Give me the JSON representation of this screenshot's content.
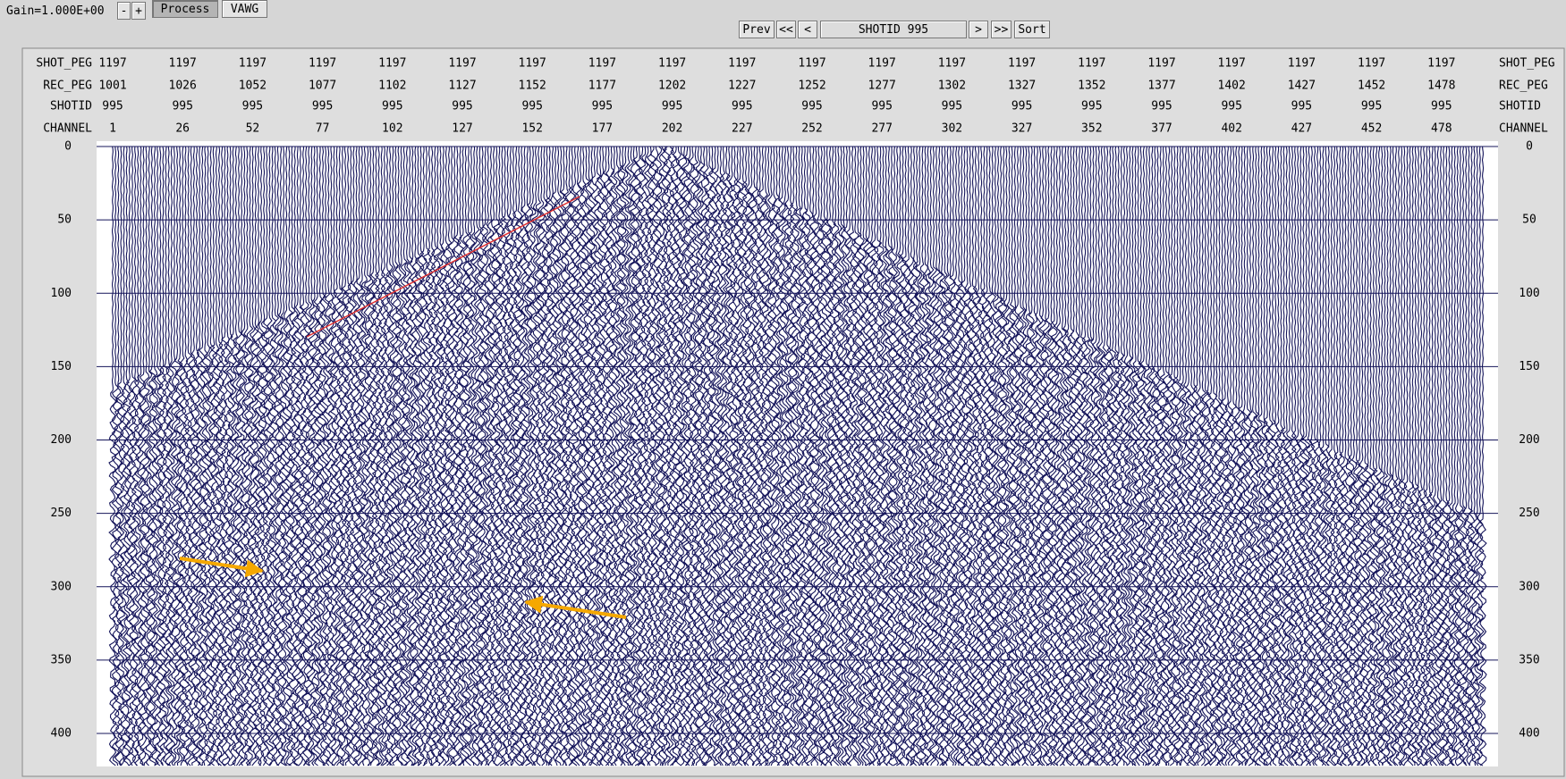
{
  "toolbar": {
    "gain": "Gain=1.000E+00",
    "minus": "-",
    "plus": "+",
    "process": "Process",
    "vawg": "VAWG"
  },
  "navigation": {
    "prev": "Prev",
    "first": "<<",
    "back": "<",
    "shot": "SHOTID 995",
    "next": ">",
    "last": ">>",
    "sort": "Sort"
  },
  "headers": [
    {
      "label": "SHOT_PEG",
      "values": [
        "1197",
        "1197",
        "1197",
        "1197",
        "1197",
        "1197",
        "1197",
        "1197",
        "1197",
        "1197",
        "1197",
        "1197",
        "1197",
        "1197",
        "1197",
        "1197",
        "1197",
        "1197",
        "1197",
        "1197"
      ]
    },
    {
      "label": "REC_PEG",
      "values": [
        "1001",
        "1026",
        "1052",
        "1077",
        "1102",
        "1127",
        "1152",
        "1177",
        "1202",
        "1227",
        "1252",
        "1277",
        "1302",
        "1327",
        "1352",
        "1377",
        "1402",
        "1427",
        "1452",
        "1478"
      ]
    },
    {
      "label": "SHOTID",
      "values": [
        "995",
        "995",
        "995",
        "995",
        "995",
        "995",
        "995",
        "995",
        "995",
        "995",
        "995",
        "995",
        "995",
        "995",
        "995",
        "995",
        "995",
        "995",
        "995",
        "995"
      ]
    },
    {
      "label": "CHANNEL",
      "values": [
        "1",
        "26",
        "52",
        "77",
        "102",
        "127",
        "152",
        "177",
        "202",
        "227",
        "252",
        "277",
        "302",
        "327",
        "352",
        "377",
        "402",
        "427",
        "452",
        "478"
      ]
    }
  ],
  "time_ticks": [
    0,
    50,
    100,
    150,
    200,
    250,
    300,
    350,
    400
  ]
}
